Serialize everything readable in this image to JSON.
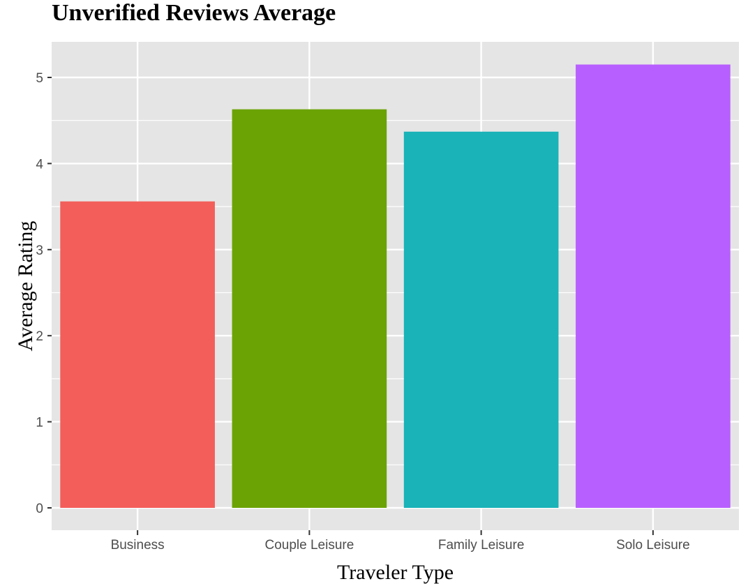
{
  "chart_data": {
    "type": "bar",
    "title": "Unverified Reviews Average",
    "xlabel": "Traveler Type",
    "ylabel": "Average Rating",
    "categories": [
      "Business",
      "Couple Leisure",
      "Family Leisure",
      "Solo Leisure"
    ],
    "values": [
      3.56,
      4.63,
      4.37,
      5.15
    ],
    "colors": [
      "#F35E5A",
      "#6BA304",
      "#19B3B8",
      "#B85FFF"
    ],
    "ylim": [
      0,
      5.4
    ],
    "yticks": [
      0,
      1,
      2,
      3,
      4,
      5
    ],
    "grid": true,
    "panel_background": "#E5E5E5",
    "grid_color": "#FFFFFF",
    "legend": "none"
  }
}
